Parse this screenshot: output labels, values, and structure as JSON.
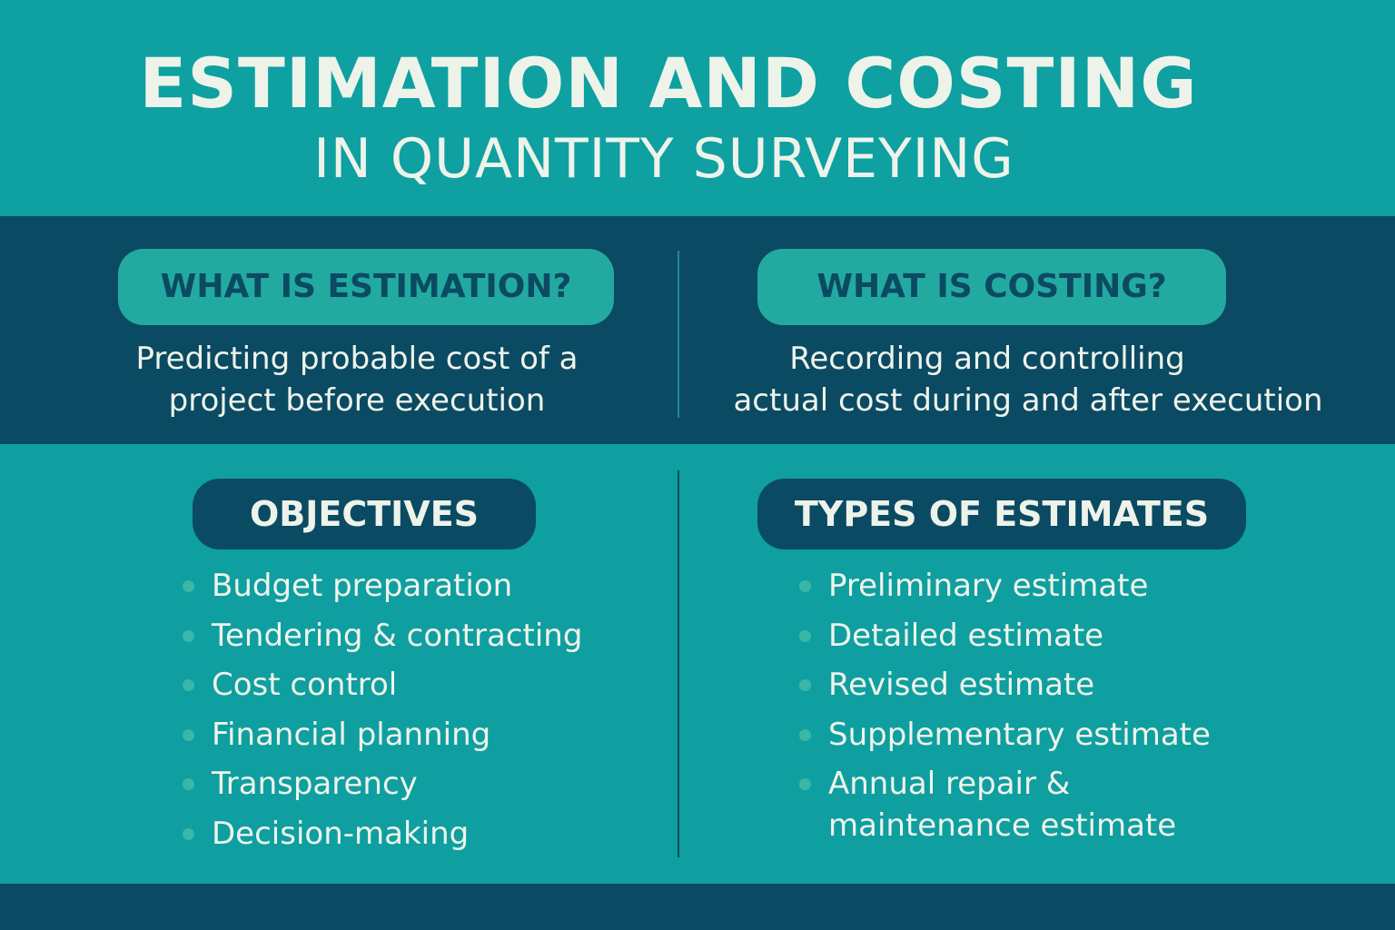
{
  "header": {
    "title": "ESTIMATION AND COSTING",
    "subtitle": "IN QUANTITY SURVEYING"
  },
  "estimation": {
    "heading": "WHAT IS ESTIMATION?",
    "line1": "Predicting probable cost of a",
    "line2": "project before execution"
  },
  "costing": {
    "heading": "WHAT IS COSTING?",
    "line1": "Recording and controlling",
    "line2": "actual cost during and after execution"
  },
  "objectives": {
    "heading": "OBJECTIVES",
    "items": [
      "Budget preparation",
      "Tendering & contracting",
      "Cost control",
      "Financial planning",
      "Transparency",
      "Decision-making"
    ]
  },
  "types": {
    "heading": "TYPES OF ESTIMATES",
    "items": [
      "Preliminary estimate",
      "Detailed estimate",
      "Revised estimate",
      "Supplementary estimate",
      "Annual repair &",
      "maintenance estimate"
    ]
  },
  "colors": {
    "teal": "#0fa0a1",
    "navy": "#0b4a63",
    "light_pill": "#23aaa0",
    "text_light": "#eef3ea"
  }
}
